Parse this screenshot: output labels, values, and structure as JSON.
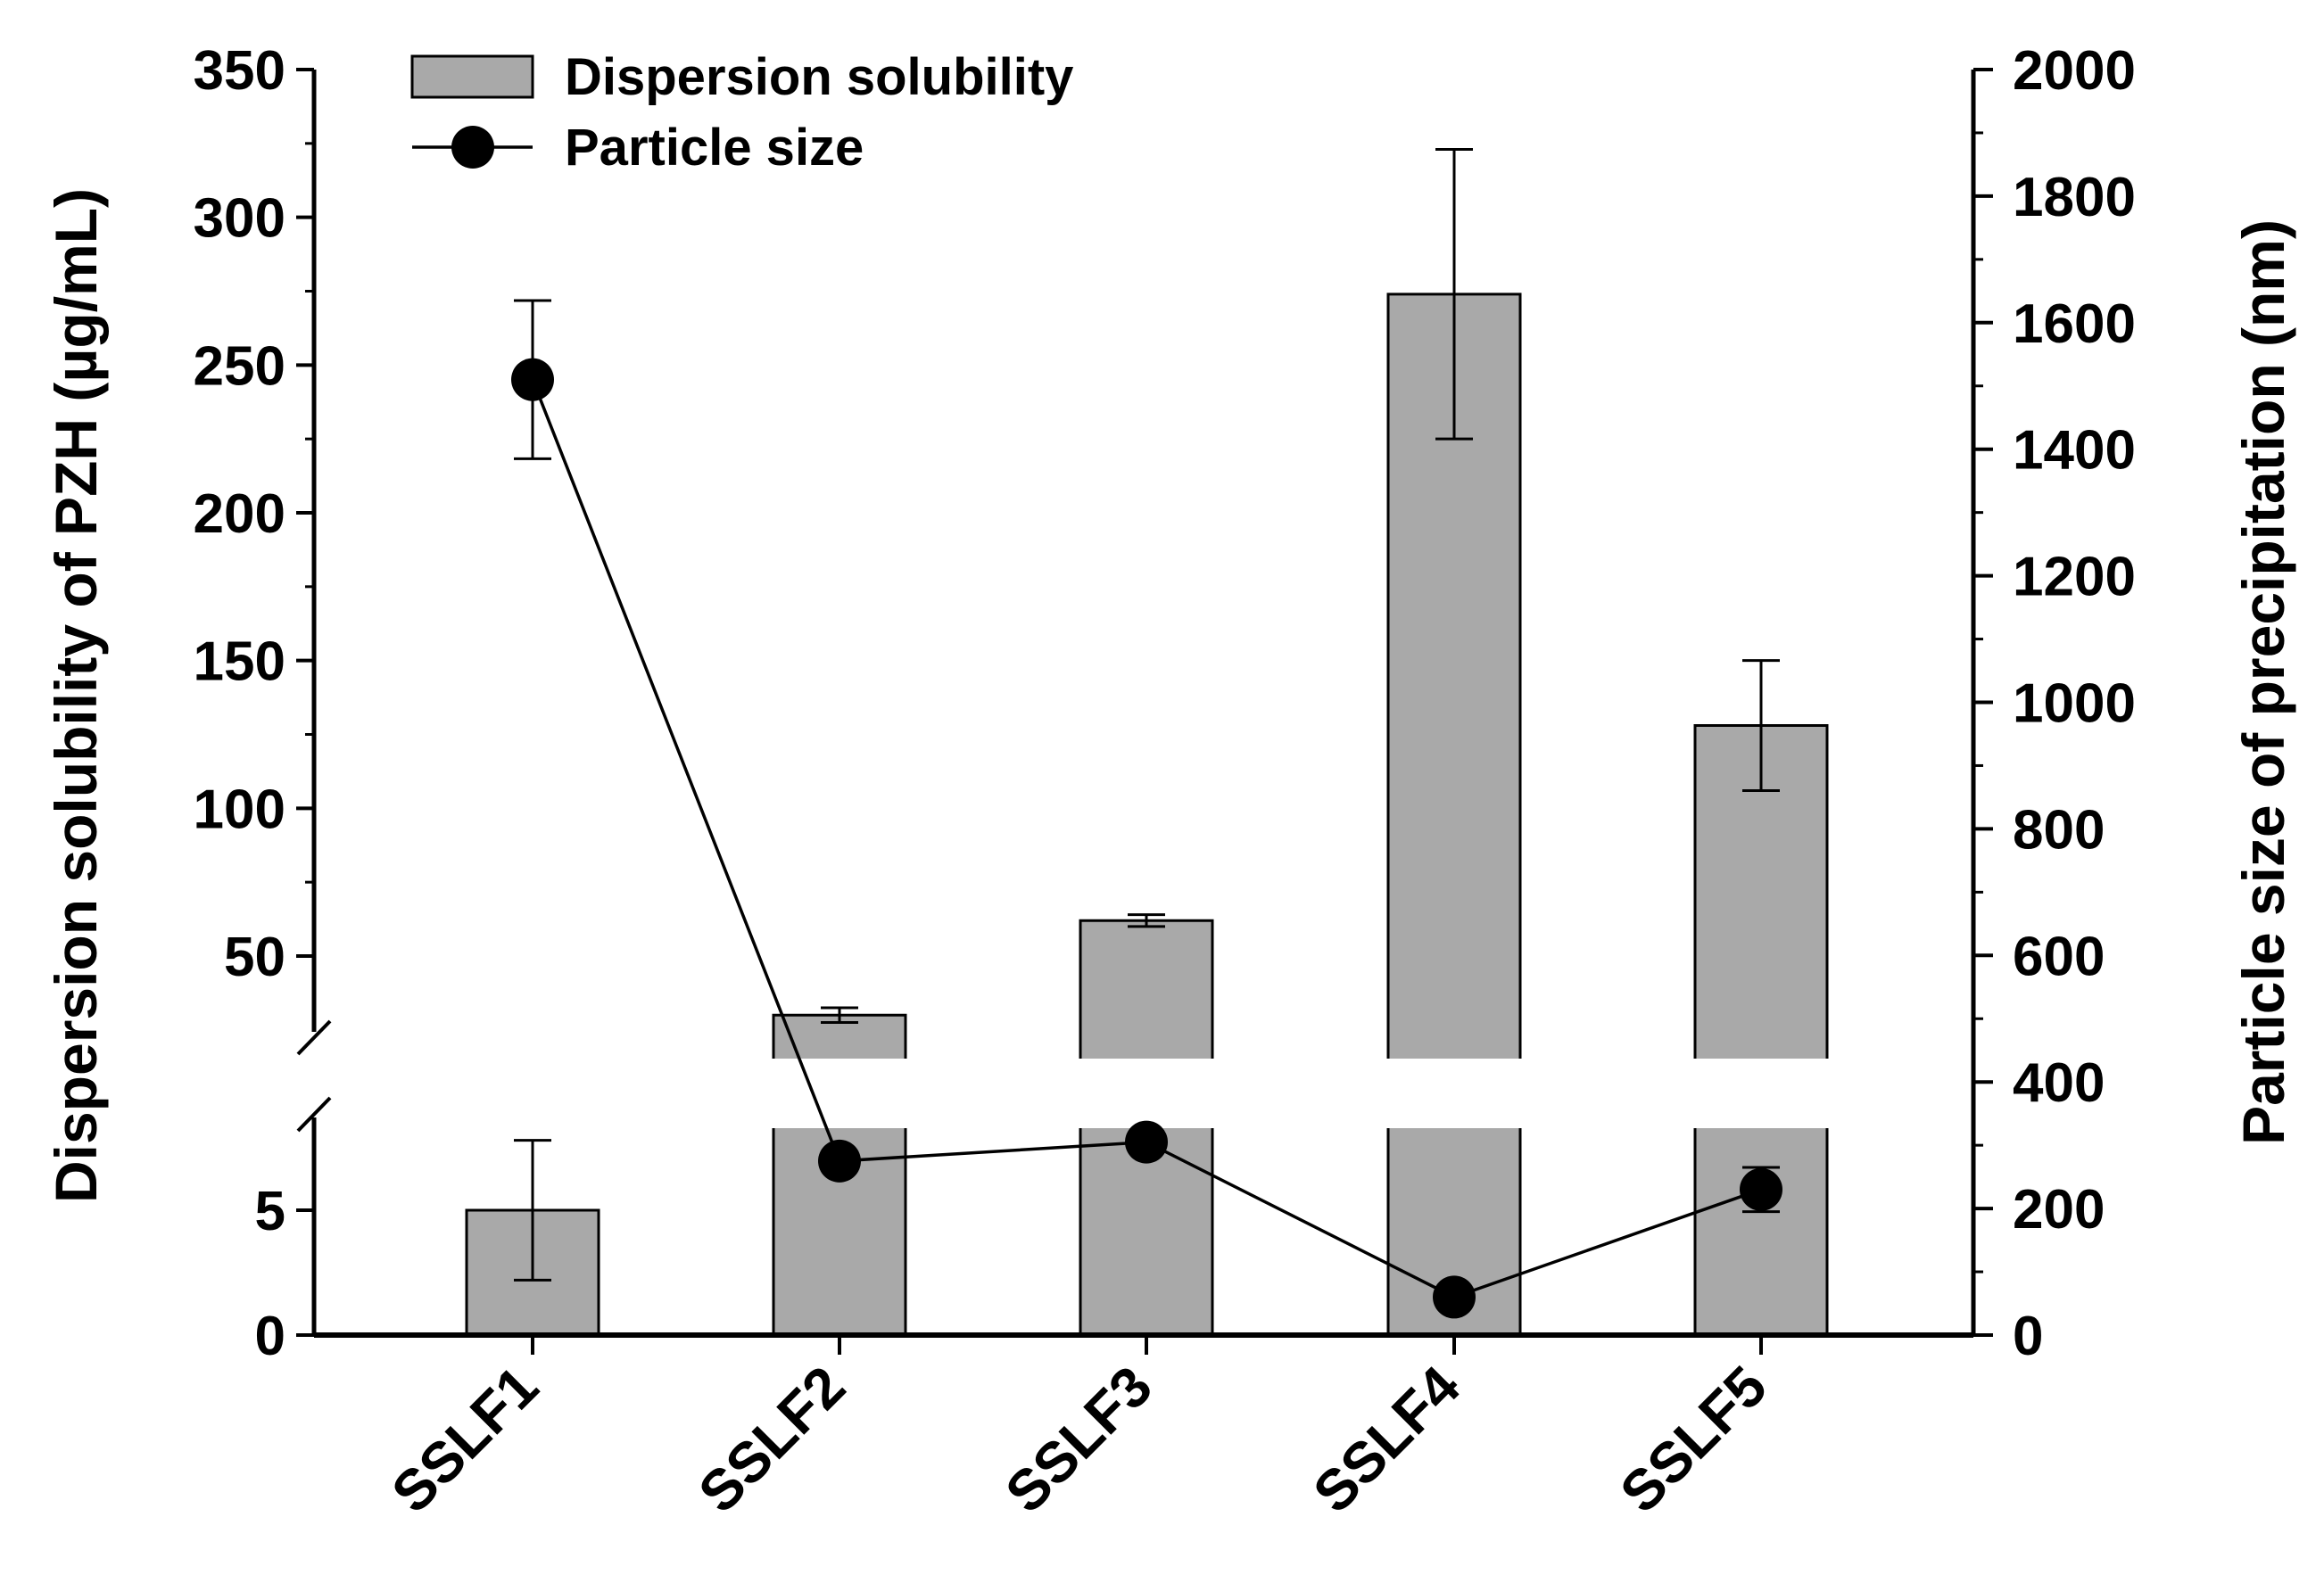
{
  "chart_data": {
    "type": "bar+line",
    "categories": [
      "SSLF1",
      "SSLF2",
      "SSLF3",
      "SSLF4",
      "SSLF5"
    ],
    "series": [
      {
        "name": "Dispersion solubility",
        "type": "bar",
        "axis": "left",
        "values": [
          5,
          30,
          62,
          274,
          128
        ],
        "errors": [
          2.8,
          2.5,
          2,
          49,
          22
        ]
      },
      {
        "name": "Particle size",
        "type": "line",
        "axis": "right",
        "values": [
          1510,
          275,
          305,
          60,
          230
        ],
        "errors": [
          125,
          0,
          0,
          0,
          35
        ]
      }
    ],
    "left_axis": {
      "label": "Dispersion solubility of PZH (µg/mL)",
      "broken": true,
      "lower_range": [
        0,
        8
      ],
      "upper_range": [
        20,
        350
      ],
      "lower_ticks": [
        0,
        5
      ],
      "upper_ticks": [
        50,
        100,
        150,
        200,
        250,
        300,
        350
      ]
    },
    "right_axis": {
      "label": "Particle size of precipitation (nm)",
      "range": [
        0,
        2000
      ],
      "ticks": [
        0,
        200,
        400,
        600,
        800,
        1000,
        1200,
        1400,
        1600,
        1800,
        2000
      ]
    },
    "legend": {
      "position": "top-left",
      "entries": [
        "Dispersion solubility",
        "Particle size"
      ]
    },
    "colors": {
      "bar_fill": "#a9a9a9",
      "bar_stroke": "#000000",
      "line": "#000000",
      "marker": "#000000"
    }
  }
}
